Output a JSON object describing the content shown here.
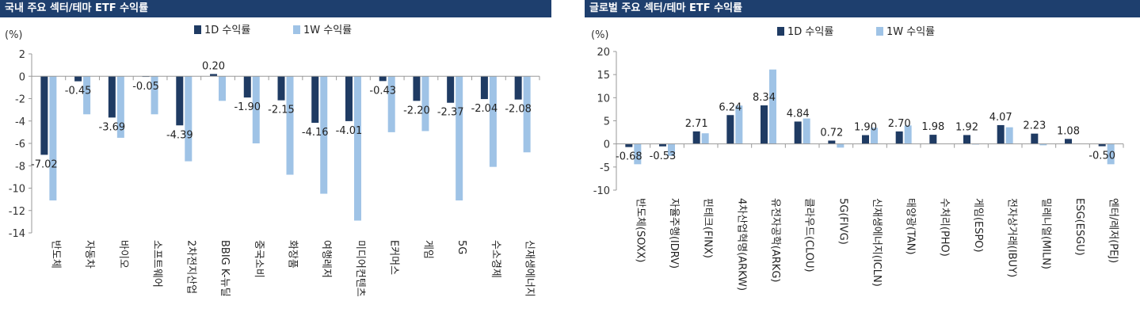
{
  "chart_data": [
    {
      "type": "bar",
      "title": "국내 주요 섹터/테마 ETF 수익률",
      "ylabel": "(%)",
      "ylim": [
        -14,
        2
      ],
      "yticks": [
        2,
        0,
        -2,
        -4,
        -6,
        -8,
        -10,
        -12,
        -14
      ],
      "grid": false,
      "legend_position": "top-center",
      "categories": [
        "반도체",
        "자동차",
        "바이오",
        "소프트웨어",
        "2차전지산업",
        "BBIG K-뉴딜",
        "중국소비",
        "화장품",
        "여행레저",
        "미디어컨텐츠",
        "E커머스",
        "게임",
        "5G",
        "수소경제",
        "신재생에너지"
      ],
      "series": [
        {
          "name": "1D 수익률",
          "color": "#1f3b63",
          "values": [
            -7.02,
            -0.45,
            -3.69,
            -0.05,
            -4.39,
            0.2,
            -1.9,
            -2.15,
            -4.16,
            -4.01,
            -0.43,
            -2.2,
            -2.37,
            -2.04,
            -2.08
          ]
        },
        {
          "name": "1W 수익률",
          "color": "#9fc3e6",
          "values": [
            -11.1,
            -3.4,
            -5.5,
            -3.4,
            -7.6,
            -2.2,
            -6.0,
            -8.8,
            -10.5,
            -12.9,
            -5.0,
            -4.9,
            -11.1,
            -8.1,
            -6.8
          ]
        }
      ],
      "data_labels": [
        "-7.02",
        "-0.45",
        "-3.69",
        "-0.05",
        "-4.39",
        "0.20",
        "-1.90",
        "-2.15",
        "-4.16",
        "-4.01",
        "-0.43",
        "-2.20",
        "-2.37",
        "-2.04",
        "-2.08"
      ]
    },
    {
      "type": "bar",
      "title": "글로벌 주요 섹터/테마 ETF 수익률",
      "ylabel": "(%)",
      "ylim": [
        -10,
        20
      ],
      "yticks": [
        20,
        15,
        10,
        5,
        0,
        -5,
        -10
      ],
      "grid": false,
      "legend_position": "top-center",
      "categories": [
        "반도체(SOXX)",
        "자율주행(IDRV)",
        "핀테크(FINX)",
        "4차산업혁명(ARKW)",
        "유전자공학(ARKG)",
        "클라우드(CLOU)",
        "5G(FIVG)",
        "신재생에너지(ICLN)",
        "태양광(TAN)",
        "수처리(PHO)",
        "게임(ESPO)",
        "전자상거래(IBUY)",
        "밀레니얼(MILN)",
        "ESG(ESGU)",
        "엔터/레저(PEJ)"
      ],
      "series": [
        {
          "name": "1D 수익률",
          "color": "#1f3b63",
          "values": [
            -0.68,
            -0.53,
            2.71,
            6.24,
            8.34,
            4.84,
            0.72,
            1.9,
            2.7,
            1.98,
            1.92,
            4.07,
            2.23,
            1.08,
            -0.5
          ]
        },
        {
          "name": "1W 수익률",
          "color": "#9fc3e6",
          "values": [
            -4.4,
            -2.6,
            2.3,
            8.3,
            16.1,
            5.5,
            -0.8,
            3.5,
            4.0,
            0.0,
            -0.1,
            3.6,
            -0.3,
            0.0,
            -4.4
          ]
        }
      ],
      "data_labels": [
        "-0.68",
        "-0.53",
        "2.71",
        "6.24",
        "8.34",
        "4.84",
        "0.72",
        "1.90",
        "2.70",
        "1.98",
        "1.92",
        "4.07",
        "2.23",
        "1.08",
        "-0.50"
      ]
    }
  ]
}
